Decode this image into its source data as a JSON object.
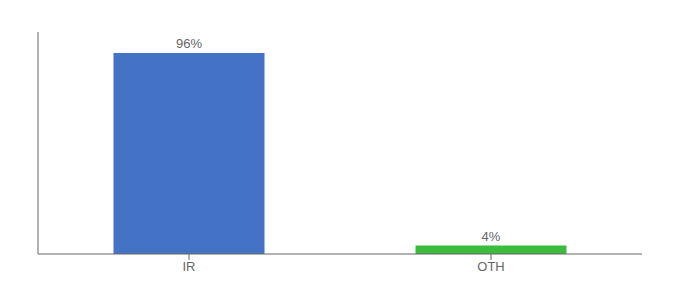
{
  "chart_data": {
    "type": "bar",
    "categories": [
      "IR",
      "OTH"
    ],
    "values": [
      96,
      4
    ],
    "value_labels": [
      "96%",
      "4%"
    ],
    "colors": [
      "#4472c4",
      "#3dbb3d"
    ],
    "ylim": [
      0,
      106
    ],
    "tick_labels": "x",
    "data_labels": true,
    "grid": false
  }
}
